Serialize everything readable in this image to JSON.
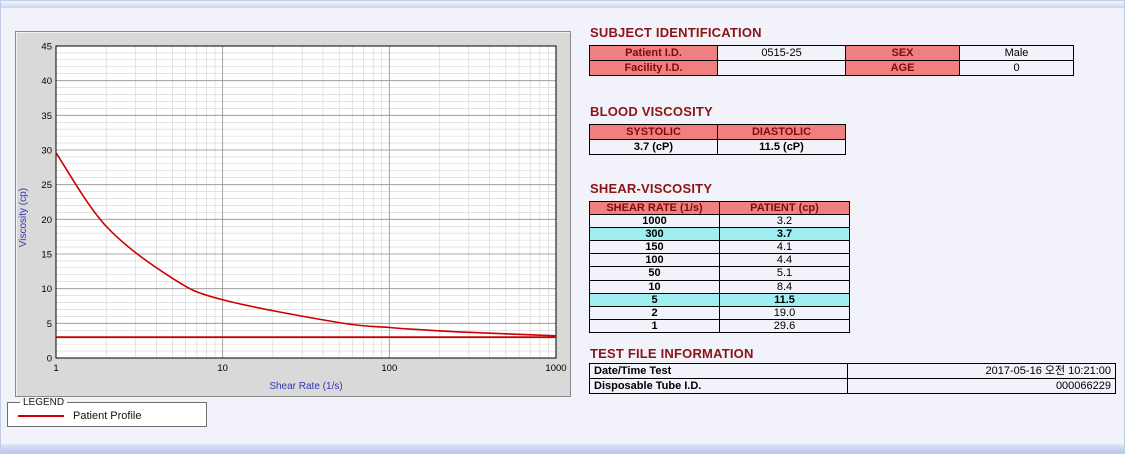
{
  "colors": {
    "section_title": "#8b1515",
    "table_header_bg": "#f08080",
    "table_header_text": "#7d0b0b",
    "highlight_row_bg": "#9feef0",
    "curve_red": "#cc0000",
    "axis_label_blue": "#3333bb",
    "panel_gray": "#d9d9d9"
  },
  "legend": {
    "title": "LEGEND",
    "item": "Patient Profile"
  },
  "chart_data": {
    "type": "line",
    "title": "",
    "xlabel": "Shear Rate (1/s)",
    "ylabel": "Viscosity (cp)",
    "xscale": "log",
    "xlim": [
      1,
      1000
    ],
    "ylim": [
      0,
      45
    ],
    "ytick_step": 5,
    "xticks": [
      "1",
      "10",
      "100",
      "1000"
    ],
    "grid": "on",
    "x": [
      1,
      2,
      5,
      10,
      50,
      100,
      150,
      300,
      1000
    ],
    "series": [
      {
        "name": "Patient Profile",
        "values": [
          29.6,
          19.0,
          11.5,
          8.4,
          5.1,
          4.4,
          4.1,
          3.7,
          3.2
        ]
      }
    ],
    "reference_line_y": 3.0,
    "line_color": "#cc0000"
  },
  "subject_identification": {
    "title": "SUBJECT IDENTIFICATION",
    "rows": [
      {
        "label1": "Patient I.D.",
        "value1": "0515-25",
        "label2": "SEX",
        "value2": "Male"
      },
      {
        "label1": "Facility I.D.",
        "value1": "",
        "label2": "AGE",
        "value2": "0"
      }
    ]
  },
  "blood_viscosity": {
    "title": "BLOOD VISCOSITY",
    "headers": [
      "SYSTOLIC",
      "DIASTOLIC"
    ],
    "values": [
      "3.7 (cP)",
      "11.5 (cP)"
    ]
  },
  "shear_viscosity": {
    "title": "SHEAR-VISCOSITY",
    "headers": [
      "SHEAR RATE (1/s)",
      "PATIENT (cp)"
    ],
    "rows": [
      {
        "rate": "1000",
        "value": "3.2",
        "highlight": false
      },
      {
        "rate": "300",
        "value": "3.7",
        "highlight": true
      },
      {
        "rate": "150",
        "value": "4.1",
        "highlight": false
      },
      {
        "rate": "100",
        "value": "4.4",
        "highlight": false
      },
      {
        "rate": "50",
        "value": "5.1",
        "highlight": false
      },
      {
        "rate": "10",
        "value": "8.4",
        "highlight": false
      },
      {
        "rate": "5",
        "value": "11.5",
        "highlight": true
      },
      {
        "rate": "2",
        "value": "19.0",
        "highlight": false
      },
      {
        "rate": "1",
        "value": "29.6",
        "highlight": false
      }
    ]
  },
  "test_file_information": {
    "title": "TEST FILE INFORMATION",
    "rows": [
      {
        "label": "Date/Time Test",
        "value": "2017-05-16  오전 10:21:00"
      },
      {
        "label": "Disposable Tube I.D.",
        "value": "000066229"
      }
    ]
  }
}
